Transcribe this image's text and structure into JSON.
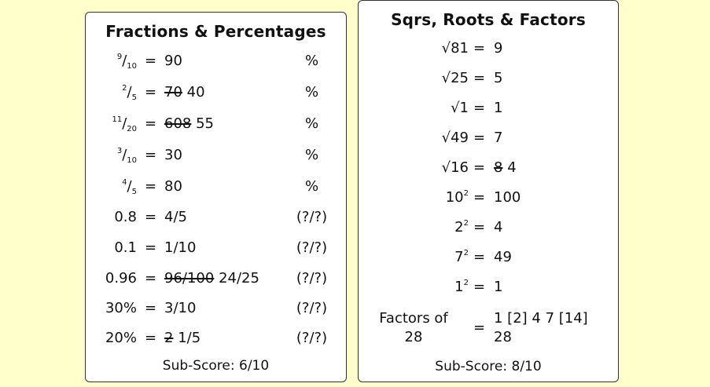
{
  "left_card": {
    "title": "Fractions & Percentages",
    "rows": [
      {
        "num": "9",
        "den": "10",
        "eq": "=",
        "struck": "",
        "answer": "90",
        "unit": "%"
      },
      {
        "num": "2",
        "den": "5",
        "eq": "=",
        "struck": "70",
        "answer": "40",
        "unit": "%"
      },
      {
        "num": "11",
        "den": "20",
        "eq": "=",
        "struck": "608",
        "answer": "55",
        "unit": "%"
      },
      {
        "num": "3",
        "den": "10",
        "eq": "=",
        "struck": "",
        "answer": "30",
        "unit": "%"
      },
      {
        "num": "4",
        "den": "5",
        "eq": "=",
        "struck": "",
        "answer": "80",
        "unit": "%"
      },
      {
        "lhs": "0.8",
        "eq": "=",
        "struck": "",
        "answer": "4/5",
        "unit": "(?/?)"
      },
      {
        "lhs": "0.1",
        "eq": "=",
        "struck": "",
        "answer": "1/10",
        "unit": "(?/?)"
      },
      {
        "lhs": "0.96",
        "eq": "=",
        "struck": "96/100",
        "answer": "24/25",
        "unit": "(?/?)"
      },
      {
        "lhs": "30%",
        "eq": "=",
        "struck": "",
        "answer": "3/10",
        "unit": "(?/?)"
      },
      {
        "lhs": "20%",
        "eq": "=",
        "struck": "2",
        "answer": "1/5",
        "unit": "(?/?)"
      }
    ],
    "subscore": "Sub-Score: 6/10"
  },
  "right_card": {
    "title": "Sqrs, Roots & Factors",
    "rows": [
      {
        "lhs": "√81",
        "eq": "=",
        "struck": "",
        "answer": "9"
      },
      {
        "lhs": "√25",
        "eq": "=",
        "struck": "",
        "answer": "5"
      },
      {
        "lhs": "√1",
        "eq": "=",
        "struck": "",
        "answer": "1"
      },
      {
        "lhs": "√49",
        "eq": "=",
        "struck": "",
        "answer": "7"
      },
      {
        "lhs": "√16",
        "eq": "=",
        "struck": "8",
        "answer": "4"
      },
      {
        "base": "10",
        "exp": "2",
        "eq": "=",
        "struck": "",
        "answer": "100"
      },
      {
        "base": "2",
        "exp": "2",
        "eq": "=",
        "struck": "",
        "answer": "4"
      },
      {
        "base": "7",
        "exp": "2",
        "eq": "=",
        "struck": "",
        "answer": "49"
      },
      {
        "base": "1",
        "exp": "2",
        "eq": "=",
        "struck": "",
        "answer": "1"
      }
    ],
    "factors": {
      "lhs_line1": "Factors of",
      "lhs_line2": "28",
      "eq": "=",
      "answer_line1": "1 [2] 4 7 [14]",
      "answer_line2": "28"
    },
    "subscore": "Sub-Score: 8/10"
  }
}
